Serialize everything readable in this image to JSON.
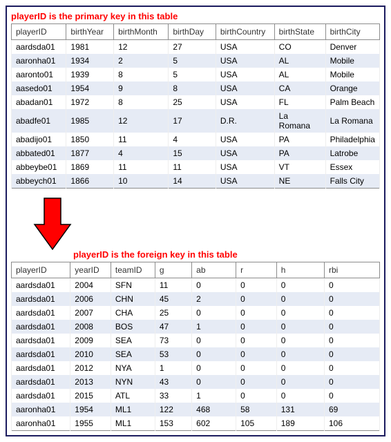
{
  "captions": {
    "primary": "playerID is the primary key in this table",
    "foreign": "playerID is the foreign key in this table"
  },
  "colors": {
    "caption": "#ff0000",
    "arrow_fill": "#ff0000",
    "arrow_stroke": "#000000",
    "border": "#1a1a5e",
    "row_alt": "#e6ebf5",
    "header_border": "#8c8c8c"
  },
  "table1": {
    "columns": [
      "playerID",
      "birthYear",
      "birthMonth",
      "birthDay",
      "birthCountry",
      "birthState",
      "birthCity"
    ],
    "col_widths": [
      "15%",
      "13%",
      "15%",
      "13%",
      "16%",
      "14%",
      "14%"
    ],
    "rows": [
      [
        "aardsda01",
        "1981",
        "12",
        "27",
        "USA",
        "CO",
        "Denver"
      ],
      [
        "aaronha01",
        "1934",
        "2",
        "5",
        "USA",
        "AL",
        "Mobile"
      ],
      [
        "aaronto01",
        "1939",
        "8",
        "5",
        "USA",
        "AL",
        "Mobile"
      ],
      [
        "aasedo01",
        "1954",
        "9",
        "8",
        "USA",
        "CA",
        "Orange"
      ],
      [
        "abadan01",
        "1972",
        "8",
        "25",
        "USA",
        "FL",
        "Palm Beach"
      ],
      [
        "abadfe01",
        "1985",
        "12",
        "17",
        "D.R.",
        "La Romana",
        "La Romana"
      ],
      [
        "abadijo01",
        "1850",
        "11",
        "4",
        "USA",
        "PA",
        "Philadelphia"
      ],
      [
        "abbated01",
        "1877",
        "4",
        "15",
        "USA",
        "PA",
        "Latrobe"
      ],
      [
        "abbeybe01",
        "1869",
        "11",
        "11",
        "USA",
        "VT",
        "Essex"
      ],
      [
        "abbeych01",
        "1866",
        "10",
        "14",
        "USA",
        "NE",
        "Falls City"
      ]
    ]
  },
  "table2": {
    "columns": [
      "playerID",
      "yearID",
      "teamID",
      "g",
      "ab",
      "r",
      "h",
      "rbi"
    ],
    "col_widths": [
      "16%",
      "11%",
      "12%",
      "10%",
      "12%",
      "11%",
      "13%",
      "15%"
    ],
    "rows": [
      [
        "aardsda01",
        "2004",
        "SFN",
        "11",
        "0",
        "0",
        "0",
        "0"
      ],
      [
        "aardsda01",
        "2006",
        "CHN",
        "45",
        "2",
        "0",
        "0",
        "0"
      ],
      [
        "aardsda01",
        "2007",
        "CHA",
        "25",
        "0",
        "0",
        "0",
        "0"
      ],
      [
        "aardsda01",
        "2008",
        "BOS",
        "47",
        "1",
        "0",
        "0",
        "0"
      ],
      [
        "aardsda01",
        "2009",
        "SEA",
        "73",
        "0",
        "0",
        "0",
        "0"
      ],
      [
        "aardsda01",
        "2010",
        "SEA",
        "53",
        "0",
        "0",
        "0",
        "0"
      ],
      [
        "aardsda01",
        "2012",
        "NYA",
        "1",
        "0",
        "0",
        "0",
        "0"
      ],
      [
        "aardsda01",
        "2013",
        "NYN",
        "43",
        "0",
        "0",
        "0",
        "0"
      ],
      [
        "aardsda01",
        "2015",
        "ATL",
        "33",
        "1",
        "0",
        "0",
        "0"
      ],
      [
        "aaronha01",
        "1954",
        "ML1",
        "122",
        "468",
        "58",
        "131",
        "69"
      ],
      [
        "aaronha01",
        "1955",
        "ML1",
        "153",
        "602",
        "105",
        "189",
        "106"
      ]
    ]
  }
}
